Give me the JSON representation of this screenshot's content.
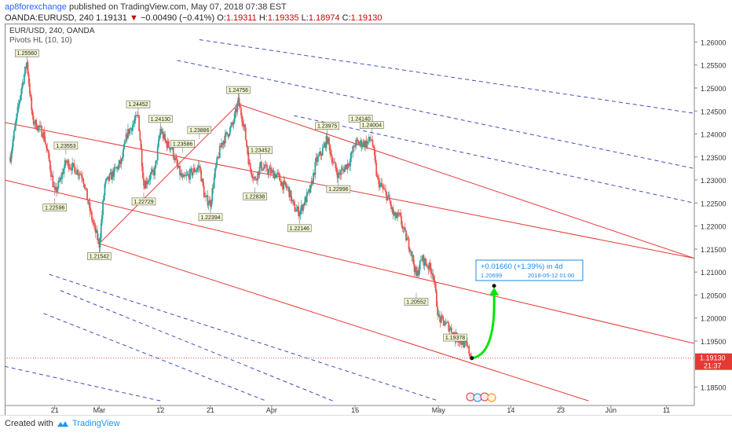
{
  "header": {
    "user": "ap8forexchange",
    "published": "published on TradingView.com, May 07, 2018 07:38 EST",
    "symbol": "OANDA:EURUSD, 240",
    "last": "1.19131",
    "change": "−0.00490 (−0.41%)",
    "open_label": "O:",
    "open": "1.19311",
    "high_label": "H:",
    "high": "1.19335",
    "low_label": "L:",
    "low": "1.18974",
    "close_label": "C:",
    "close": "1.19130"
  },
  "legend": {
    "title": "EUR/USD, 240, OANDA",
    "indicator": "Pivots HL (10, 10)"
  },
  "footer": {
    "created": "Created with",
    "brand": "TradingView"
  },
  "colors": {
    "up": "#26a69a",
    "down": "#ef5350",
    "channel_red": "#e53935",
    "channel_blue": "#3f51b5",
    "arrow": "#00e600",
    "price_tag": "#e53935",
    "pivot_bg": "#f3f7d0"
  },
  "chart_data": {
    "type": "candlestick",
    "x_ticks": [
      "21",
      "Mar",
      "12",
      "21",
      "Apr",
      "16",
      "May",
      "14",
      "23",
      "Jun",
      "11"
    ],
    "y_ticks": [
      "1.26000",
      "1.25500",
      "1.25000",
      "1.24500",
      "1.24000",
      "1.23500",
      "1.23000",
      "1.22500",
      "1.22000",
      "1.21500",
      "1.21000",
      "1.20500",
      "1.20000",
      "1.19500",
      "1.18500"
    ],
    "ylim": [
      1.181,
      1.264
    ],
    "last_price": {
      "value": "1.19130",
      "countdown": "21:37"
    },
    "pivots": [
      {
        "label": "1.25560",
        "date": "2018-02-16",
        "value": 1.2556,
        "pos": "above"
      },
      {
        "label": "1.23553",
        "date": "2018-02-23",
        "value": 1.2355,
        "pos": "above"
      },
      {
        "label": "1.22596",
        "date": "2018-02-21",
        "value": 1.226,
        "pos": "below"
      },
      {
        "label": "1.21542",
        "date": "2018-03-01",
        "value": 1.2154,
        "pos": "below"
      },
      {
        "label": "1.24452",
        "date": "2018-03-08",
        "value": 1.2445,
        "pos": "above"
      },
      {
        "label": "1.22729",
        "date": "2018-03-09",
        "value": 1.2273,
        "pos": "below"
      },
      {
        "label": "1.24130",
        "date": "2018-03-12",
        "value": 1.2413,
        "pos": "above"
      },
      {
        "label": "1.23586",
        "date": "2018-03-16",
        "value": 1.2359,
        "pos": "above"
      },
      {
        "label": "1.23886",
        "date": "2018-03-19",
        "value": 1.2389,
        "pos": "above"
      },
      {
        "label": "1.22394",
        "date": "2018-03-21",
        "value": 1.2239,
        "pos": "below"
      },
      {
        "label": "1.24756",
        "date": "2018-03-26",
        "value": 1.2476,
        "pos": "above"
      },
      {
        "label": "1.23452",
        "date": "2018-03-30",
        "value": 1.2345,
        "pos": "above"
      },
      {
        "label": "1.22838",
        "date": "2018-03-29",
        "value": 1.2284,
        "pos": "below"
      },
      {
        "label": "1.22146",
        "date": "2018-04-06",
        "value": 1.2215,
        "pos": "below"
      },
      {
        "label": "1.23975",
        "date": "2018-04-11",
        "value": 1.2398,
        "pos": "above"
      },
      {
        "label": "1.22996",
        "date": "2018-04-13",
        "value": 1.23,
        "pos": "below"
      },
      {
        "label": "1.24140",
        "date": "2018-04-17",
        "value": 1.2414,
        "pos": "above"
      },
      {
        "label": "1.24004",
        "date": "2018-04-19",
        "value": 1.24,
        "pos": "above"
      },
      {
        "label": "1.20552",
        "date": "2018-04-27",
        "value": 1.2055,
        "pos": "below"
      },
      {
        "label": "1.19378",
        "date": "2018-05-04",
        "value": 1.1938,
        "pos": "above"
      }
    ],
    "price_path": [
      [
        "2018-02-13",
        1.235
      ],
      [
        "2018-02-15",
        1.25
      ],
      [
        "2018-02-16",
        1.2556
      ],
      [
        "2018-02-17",
        1.243
      ],
      [
        "2018-02-19",
        1.24
      ],
      [
        "2018-02-20",
        1.234
      ],
      [
        "2018-02-21",
        1.227
      ],
      [
        "2018-02-22",
        1.23
      ],
      [
        "2018-02-23",
        1.234
      ],
      [
        "2018-02-26",
        1.231
      ],
      [
        "2018-02-27",
        1.225
      ],
      [
        "2018-02-28",
        1.22
      ],
      [
        "2018-03-01",
        1.216
      ],
      [
        "2018-03-02",
        1.229
      ],
      [
        "2018-03-05",
        1.234
      ],
      [
        "2018-03-06",
        1.24
      ],
      [
        "2018-03-07",
        1.242
      ],
      [
        "2018-03-08",
        1.244
      ],
      [
        "2018-03-09",
        1.229
      ],
      [
        "2018-03-11",
        1.232
      ],
      [
        "2018-03-12",
        1.241
      ],
      [
        "2018-03-13",
        1.238
      ],
      [
        "2018-03-14",
        1.237
      ],
      [
        "2018-03-15",
        1.233
      ],
      [
        "2018-03-16",
        1.23
      ],
      [
        "2018-03-19",
        1.233
      ],
      [
        "2018-03-20",
        1.226
      ],
      [
        "2018-03-21",
        1.225
      ],
      [
        "2018-03-22",
        1.233
      ],
      [
        "2018-03-23",
        1.238
      ],
      [
        "2018-03-25",
        1.242
      ],
      [
        "2018-03-26",
        1.247
      ],
      [
        "2018-03-27",
        1.242
      ],
      [
        "2018-03-28",
        1.233
      ],
      [
        "2018-03-29",
        1.23
      ],
      [
        "2018-03-30",
        1.233
      ],
      [
        "2018-04-02",
        1.231
      ],
      [
        "2018-04-03",
        1.229
      ],
      [
        "2018-04-04",
        1.228
      ],
      [
        "2018-04-05",
        1.224
      ],
      [
        "2018-04-06",
        1.223
      ],
      [
        "2018-04-08",
        1.228
      ],
      [
        "2018-04-09",
        1.234
      ],
      [
        "2018-04-10",
        1.236
      ],
      [
        "2018-04-11",
        1.239
      ],
      [
        "2018-04-12",
        1.234
      ],
      [
        "2018-04-13",
        1.231
      ],
      [
        "2018-04-15",
        1.234
      ],
      [
        "2018-04-16",
        1.238
      ],
      [
        "2018-04-17",
        1.238
      ],
      [
        "2018-04-18",
        1.238
      ],
      [
        "2018-04-19",
        1.239
      ],
      [
        "2018-04-20",
        1.23
      ],
      [
        "2018-04-22",
        1.226
      ],
      [
        "2018-04-23",
        1.222
      ],
      [
        "2018-04-24",
        1.222
      ],
      [
        "2018-04-25",
        1.218
      ],
      [
        "2018-04-26",
        1.215
      ],
      [
        "2018-04-27",
        1.209
      ],
      [
        "2018-04-28",
        1.213
      ],
      [
        "2018-04-30",
        1.21
      ],
      [
        "2018-05-01",
        1.2
      ],
      [
        "2018-05-02",
        1.199
      ],
      [
        "2018-05-03",
        1.198
      ],
      [
        "2018-05-04",
        1.196
      ],
      [
        "2018-05-06",
        1.194
      ],
      [
        "2018-05-07",
        1.1913
      ]
    ],
    "forecast": {
      "text": "+0.01660 (+1.39%) in 4d",
      "target": "1.20699",
      "datetime": "2018-05-12  01:00",
      "from": [
        "2018-05-07",
        1.1913
      ],
      "to": [
        "2018-05-11",
        1.207
      ]
    },
    "channels": {
      "red_lines": [
        [
          [
            "2018-02-12",
            1.2425
          ],
          [
            "2018-06-16",
            1.213
          ]
        ],
        [
          [
            "2018-02-12",
            1.23
          ],
          [
            "2018-06-16",
            1.1945
          ]
        ],
        [
          [
            "2018-03-01",
            1.2162
          ],
          [
            "2018-05-28",
            1.182
          ]
        ],
        [
          [
            "2018-03-01",
            1.2162
          ],
          [
            "2018-03-26",
            1.2465
          ]
        ],
        [
          [
            "2018-03-26",
            1.2465
          ],
          [
            "2018-06-16",
            1.213
          ]
        ]
      ],
      "blue_dashed": [
        [
          [
            "2018-03-19",
            1.2605
          ],
          [
            "2018-06-16",
            1.2445
          ]
        ],
        [
          [
            "2018-03-15",
            1.256
          ],
          [
            "2018-06-16",
            1.2325
          ]
        ],
        [
          [
            "2018-04-05",
            1.244
          ],
          [
            "2018-06-16",
            1.225
          ]
        ],
        [
          [
            "2018-02-20",
            1.2095
          ],
          [
            "2018-05-01",
            1.182
          ]
        ],
        [
          [
            "2018-02-22",
            1.206
          ],
          [
            "2018-04-12",
            1.182
          ]
        ],
        [
          [
            "2018-02-19",
            1.201
          ],
          [
            "2018-03-31",
            1.182
          ]
        ],
        [
          [
            "2018-02-12",
            1.1895
          ],
          [
            "2018-03-12",
            1.182
          ]
        ]
      ]
    }
  }
}
